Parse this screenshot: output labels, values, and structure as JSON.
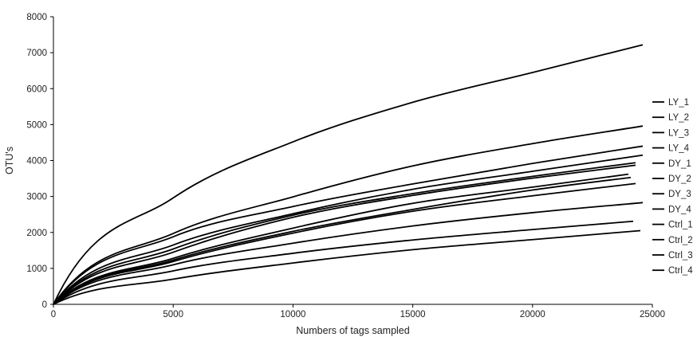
{
  "chart_data": {
    "type": "line",
    "title": "",
    "xlabel": "Numbers of tags sampled",
    "ylabel": "OTU's",
    "xlim": [
      0,
      25000
    ],
    "ylim": [
      0,
      8000
    ],
    "xticks": [
      0,
      5000,
      10000,
      15000,
      20000,
      25000
    ],
    "yticks": [
      0,
      1000,
      2000,
      3000,
      4000,
      5000,
      6000,
      7000,
      8000
    ],
    "grid": false,
    "legend_position": "right",
    "line_color": "#000000",
    "series": [
      {
        "name": "LY_1",
        "x": [
          0,
          5000,
          10000,
          15000,
          20000,
          24600
        ],
        "values": [
          0,
          2960,
          4520,
          5620,
          6450,
          7220
        ]
      },
      {
        "name": "LY_2",
        "x": [
          0,
          5000,
          10000,
          15000,
          20000,
          24600
        ],
        "values": [
          0,
          1970,
          2990,
          3850,
          4470,
          4960
        ]
      },
      {
        "name": "LY_3",
        "x": [
          0,
          5000,
          10000,
          15000,
          20000,
          24600
        ],
        "values": [
          0,
          1880,
          2720,
          3350,
          3920,
          4400
        ]
      },
      {
        "name": "LY_4",
        "x": [
          0,
          5000,
          10000,
          15000,
          20000,
          24600
        ],
        "values": [
          0,
          1650,
          2520,
          3200,
          3700,
          4150
        ]
      },
      {
        "name": "DY_1",
        "x": [
          0,
          5000,
          10000,
          15000,
          20000,
          24300
        ],
        "values": [
          0,
          1540,
          2480,
          3080,
          3560,
          3940
        ]
      },
      {
        "name": "DY_2",
        "x": [
          0,
          5000,
          10000,
          15000,
          20000,
          24300
        ],
        "values": [
          0,
          1450,
          2420,
          3030,
          3510,
          3870
        ]
      },
      {
        "name": "DY_3",
        "x": [
          0,
          5000,
          10000,
          15000,
          20000,
          24000
        ],
        "values": [
          0,
          1280,
          2120,
          2810,
          3260,
          3620
        ]
      },
      {
        "name": "DY_4",
        "x": [
          0,
          5000,
          10000,
          15000,
          20000,
          24100
        ],
        "values": [
          0,
          1230,
          2030,
          2640,
          3180,
          3530
        ]
      },
      {
        "name": "Ctrl_1",
        "x": [
          0,
          5000,
          10000,
          15000,
          20000,
          24300
        ],
        "values": [
          0,
          1190,
          1980,
          2590,
          3020,
          3360
        ]
      },
      {
        "name": "Ctrl_2",
        "x": [
          0,
          5000,
          10000,
          15000,
          20000,
          24600
        ],
        "values": [
          0,
          1100,
          1700,
          2180,
          2550,
          2830
        ]
      },
      {
        "name": "Ctrl_3",
        "x": [
          0,
          5000,
          10000,
          15000,
          20000,
          24200
        ],
        "values": [
          0,
          930,
          1420,
          1790,
          2080,
          2310
        ]
      },
      {
        "name": "Ctrl_4",
        "x": [
          0,
          5000,
          10000,
          15000,
          20000,
          24500
        ],
        "values": [
          0,
          700,
          1150,
          1520,
          1800,
          2050
        ]
      }
    ]
  }
}
